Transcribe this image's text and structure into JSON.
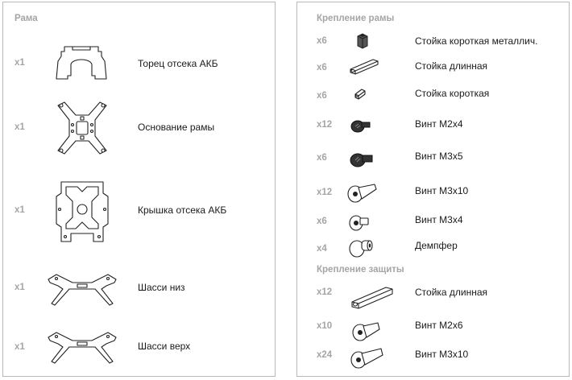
{
  "frame": {
    "title": "Рама",
    "items": [
      {
        "qty": "x1",
        "name": "Торец отсека АКБ",
        "icon": "battery-end-cap-icon"
      },
      {
        "qty": "x1",
        "name": "Основание рамы",
        "icon": "frame-base-icon"
      },
      {
        "qty": "x1",
        "name": "Крышка отсека АКБ",
        "icon": "battery-cover-icon"
      },
      {
        "qty": "x1",
        "name": "Шасси низ",
        "icon": "landing-gear-bottom-icon"
      },
      {
        "qty": "x1",
        "name": "Шасси верх",
        "icon": "landing-gear-top-icon"
      }
    ]
  },
  "frame_mount": {
    "title": "Крепление рамы",
    "items": [
      {
        "qty": "x6",
        "name": "Стойка короткая металлич.",
        "icon": "short-metal-standoff-icon"
      },
      {
        "qty": "x6",
        "name": "Стойка длинная",
        "icon": "long-standoff-icon"
      },
      {
        "qty": "x6",
        "name": "Стойка короткая",
        "icon": "short-standoff-icon"
      },
      {
        "qty": "x12",
        "name": "Винт М2х4",
        "icon": "screw-m2x4-icon"
      },
      {
        "qty": "x6",
        "name": "Винт М3х5",
        "icon": "screw-m3x5-icon"
      },
      {
        "qty": "x12",
        "name": "Винт М3х10",
        "icon": "screw-m3x10-icon"
      },
      {
        "qty": "x6",
        "name": "Винт М3х4",
        "icon": "screw-m3x4-icon"
      },
      {
        "qty": "x4",
        "name": "Демпфер",
        "icon": "damper-icon"
      }
    ]
  },
  "guard_mount": {
    "title": "Крепление защиты",
    "items": [
      {
        "qty": "x12",
        "name": "Стойка длинная",
        "icon": "long-standoff-icon"
      },
      {
        "qty": "x10",
        "name": "Винт М2х6",
        "icon": "screw-m2x6-icon"
      },
      {
        "qty": "x24",
        "name": "Винт М3х10",
        "icon": "screw-m3x10-icon"
      }
    ]
  }
}
